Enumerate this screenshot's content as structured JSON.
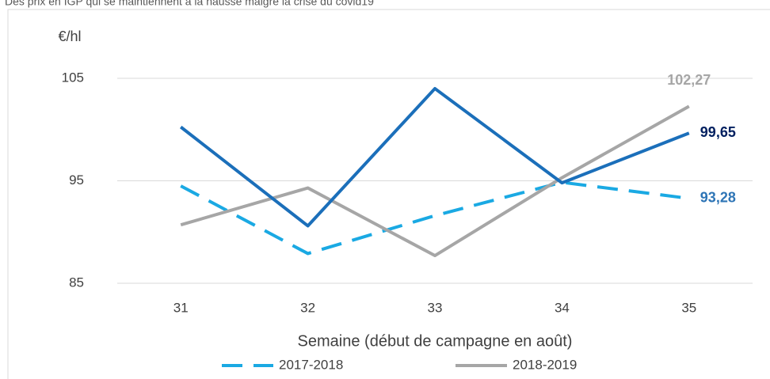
{
  "chart_data": {
    "type": "line",
    "title": "Des prix en IGP qui se maintiennent à la hausse malgré la crise du covid19",
    "y_label": "€/hl",
    "x_label": "Semaine (début de campagne en août)",
    "categories": [
      "31",
      "32",
      "33",
      "34",
      "35"
    ],
    "ylim": [
      85,
      105
    ],
    "yticks": [
      85,
      95,
      105
    ],
    "grid": true,
    "series": [
      {
        "name": "2017-2018",
        "color": "#1aa9e3",
        "dash": true,
        "values": [
          94.5,
          87.9,
          91.6,
          94.85,
          93.28
        ],
        "value_labels": [
          null,
          null,
          null,
          null,
          "93,28"
        ],
        "label_color": "#2e75b6"
      },
      {
        "name": "2018-2019",
        "color": "#a6a6a6",
        "dash": false,
        "values": [
          90.7,
          94.3,
          87.7,
          95.3,
          102.27
        ],
        "value_labels": [
          null,
          null,
          null,
          null,
          "102,27"
        ],
        "label_color": "#a6a6a6"
      },
      {
        "color": "#1b6fba",
        "dash": false,
        "values": [
          100.25,
          90.6,
          104.0,
          94.8,
          99.65
        ],
        "value_labels": [
          null,
          null,
          null,
          null,
          "99,65"
        ],
        "label_color": "#002060"
      }
    ]
  }
}
